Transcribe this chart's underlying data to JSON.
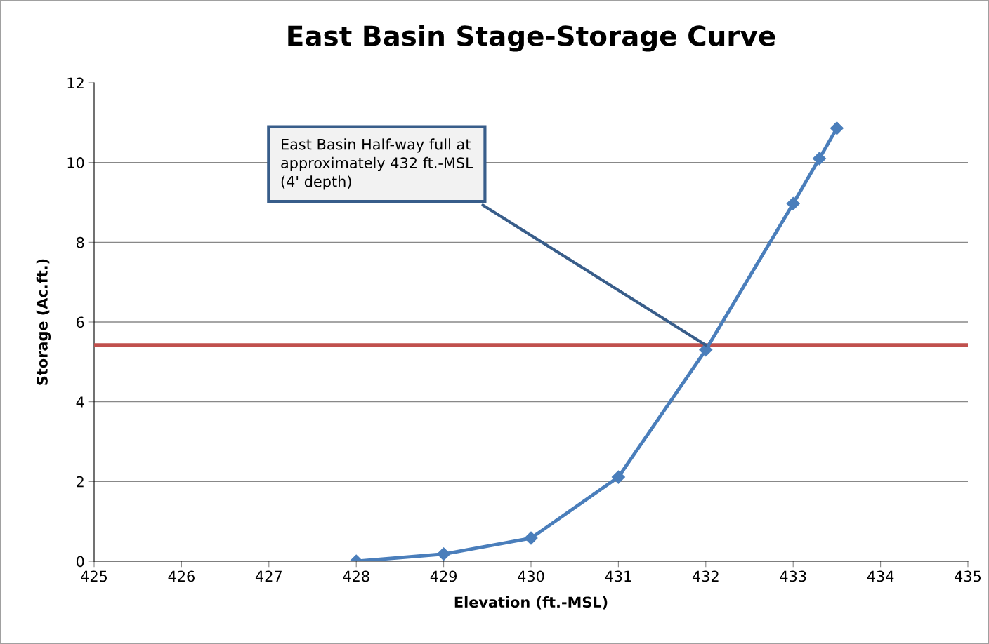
{
  "chart_data": {
    "type": "line",
    "title": "East Basin Stage-Storage Curve",
    "xlabel": "Elevation (ft.-MSL)",
    "ylabel": "Storage (Ac.ft.)",
    "x": [
      428,
      429,
      430,
      431,
      432,
      433,
      433.3,
      433.5
    ],
    "series": [
      {
        "color": "#4a7ebb",
        "values": [
          0,
          0.18,
          0.58,
          2.11,
          5.3,
          8.97,
          10.1,
          10.86
        ]
      }
    ],
    "xlim": [
      425,
      435
    ],
    "xticks": [
      425,
      426,
      427,
      428,
      429,
      430,
      431,
      432,
      433,
      434,
      435
    ],
    "ylim": [
      0,
      12
    ],
    "yticks": [
      0,
      2,
      4,
      6,
      8,
      10,
      12
    ],
    "grid": "y",
    "marker": "diamond",
    "line_style": "solid",
    "legend": false,
    "ref_lines": [
      {
        "axis": "y",
        "value": 5.42,
        "color": "#c0504d"
      }
    ],
    "annotations": [
      {
        "text": "East Basin Half-way full at\napproximately 432 ft.-MSL\n(4' depth)",
        "x": 432,
        "y": 5.42
      }
    ]
  }
}
